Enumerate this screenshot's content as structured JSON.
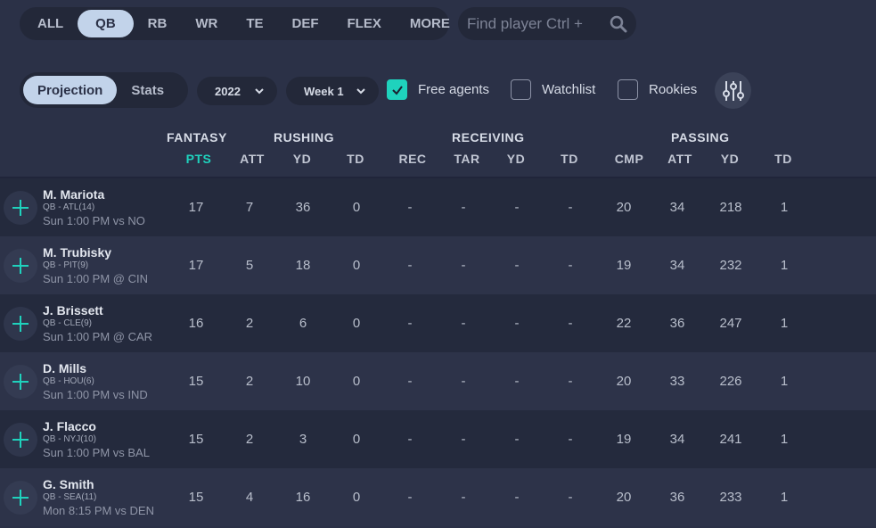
{
  "positions": [
    {
      "label": "ALL",
      "active": false
    },
    {
      "label": "QB",
      "active": true
    },
    {
      "label": "RB",
      "active": false
    },
    {
      "label": "WR",
      "active": false
    },
    {
      "label": "TE",
      "active": false
    },
    {
      "label": "DEF",
      "active": false
    },
    {
      "label": "FLEX",
      "active": false
    },
    {
      "label": "MORE",
      "active": false
    }
  ],
  "search": {
    "placeholder": "Find player Ctrl +",
    "icon": "search-icon"
  },
  "view_toggle": {
    "projection": "Projection",
    "stats": "Stats",
    "active": "Projection"
  },
  "season": {
    "value": "2022"
  },
  "week": {
    "value": "Week 1"
  },
  "filters": {
    "free_agents": {
      "label": "Free agents",
      "checked": true
    },
    "watchlist": {
      "label": "Watchlist",
      "checked": false
    },
    "rookies": {
      "label": "Rookies",
      "checked": false
    }
  },
  "groups": {
    "fantasy": "FANTASY",
    "rushing": "RUSHING",
    "receiving": "RECEIVING",
    "passing": "PASSING"
  },
  "columns": [
    "PTS",
    "ATT",
    "YD",
    "TD",
    "REC",
    "TAR",
    "YD",
    "TD",
    "CMP",
    "ATT",
    "YD",
    "TD"
  ],
  "accent_color": "#1fd2bd",
  "players": [
    {
      "name": "M. Mariota",
      "team": "QB - ATL(14)",
      "game": "Sun 1:00 PM vs NO",
      "stats": [
        "17",
        "7",
        "36",
        "0",
        "-",
        "-",
        "-",
        "-",
        "20",
        "34",
        "218",
        "1"
      ]
    },
    {
      "name": "M. Trubisky",
      "team": "QB - PIT(9)",
      "game": "Sun 1:00 PM @ CIN",
      "stats": [
        "17",
        "5",
        "18",
        "0",
        "-",
        "-",
        "-",
        "-",
        "19",
        "34",
        "232",
        "1"
      ]
    },
    {
      "name": "J. Brissett",
      "team": "QB - CLE(9)",
      "game": "Sun 1:00 PM @ CAR",
      "stats": [
        "16",
        "2",
        "6",
        "0",
        "-",
        "-",
        "-",
        "-",
        "22",
        "36",
        "247",
        "1"
      ]
    },
    {
      "name": "D. Mills",
      "team": "QB - HOU(6)",
      "game": "Sun 1:00 PM vs IND",
      "stats": [
        "15",
        "2",
        "10",
        "0",
        "-",
        "-",
        "-",
        "-",
        "20",
        "33",
        "226",
        "1"
      ]
    },
    {
      "name": "J. Flacco",
      "team": "QB - NYJ(10)",
      "game": "Sun 1:00 PM vs BAL",
      "stats": [
        "15",
        "2",
        "3",
        "0",
        "-",
        "-",
        "-",
        "-",
        "19",
        "34",
        "241",
        "1"
      ]
    },
    {
      "name": "G. Smith",
      "team": "QB - SEA(11)",
      "game": "Mon 8:15 PM vs DEN",
      "stats": [
        "15",
        "4",
        "16",
        "0",
        "-",
        "-",
        "-",
        "-",
        "20",
        "36",
        "233",
        "1"
      ]
    }
  ]
}
